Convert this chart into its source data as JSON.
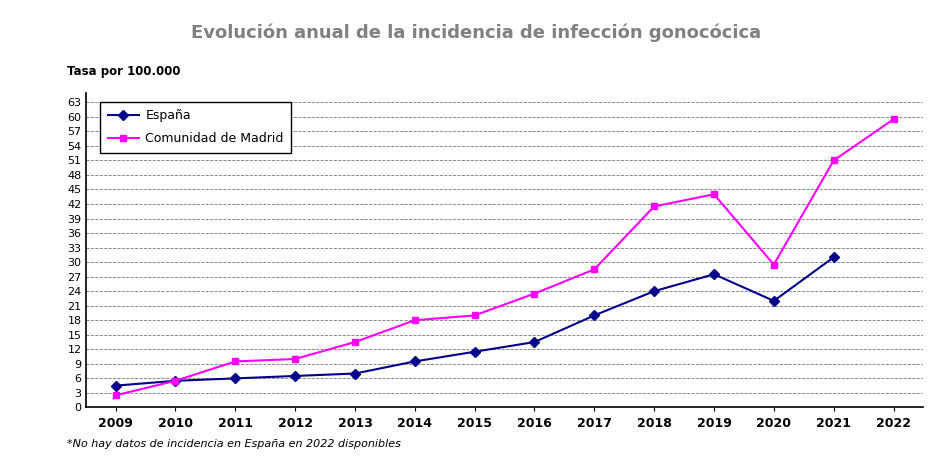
{
  "title": "Evolución anual de la incidencia de infección gonocócica",
  "ylabel": "Tasa por 100.000",
  "years": [
    2009,
    2010,
    2011,
    2012,
    2013,
    2014,
    2015,
    2016,
    2017,
    2018,
    2019,
    2020,
    2021,
    2022
  ],
  "espana": [
    4.5,
    5.5,
    6.0,
    6.5,
    7.0,
    9.5,
    11.5,
    13.5,
    19.0,
    24.0,
    27.5,
    22.0,
    31.0,
    null
  ],
  "madrid": [
    2.5,
    5.5,
    9.5,
    10.0,
    13.5,
    18.0,
    19.0,
    23.5,
    28.5,
    41.5,
    44.0,
    29.5,
    51.0,
    59.5
  ],
  "espana_color": "#00008B",
  "madrid_color": "#FF00FF",
  "yticks": [
    0,
    3,
    6,
    9,
    12,
    15,
    18,
    21,
    24,
    27,
    30,
    33,
    36,
    39,
    42,
    45,
    48,
    51,
    54,
    57,
    60,
    63
  ],
  "ylim": [
    0,
    65
  ],
  "footnote": "*No hay datos de incidencia en España en 2022 disponibles",
  "background_color": "#ffffff",
  "grid_color": "#555555",
  "legend_espana": "España",
  "legend_madrid": "Comunidad de Madrid",
  "title_color": "#808080"
}
